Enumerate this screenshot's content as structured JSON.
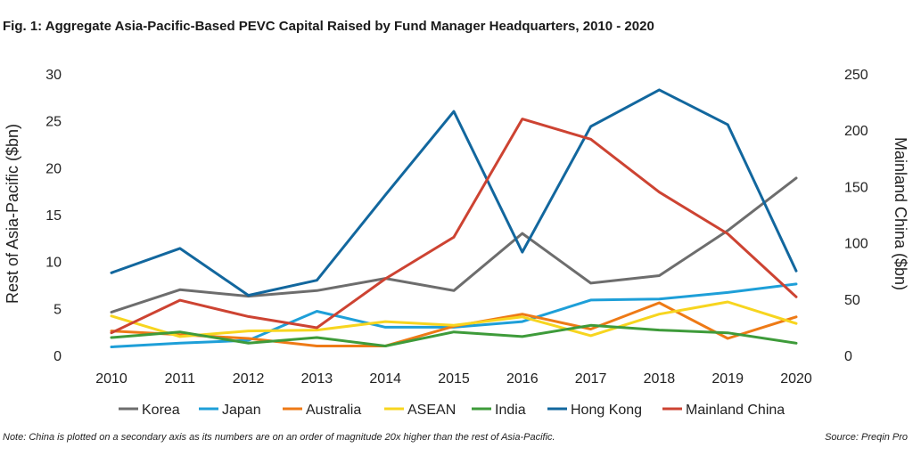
{
  "chart_data": {
    "type": "line",
    "title": "Fig. 1: Aggregate Asia-Pacific-Based PEVC Capital Raised by Fund Manager Headquarters, 2010 - 2020",
    "xlabel": "",
    "ylabel": "Rest of Asia-Pacific ($bn)",
    "y2label": "Mainland China ($bn)",
    "categories": [
      "2010",
      "2011",
      "2012",
      "2013",
      "2014",
      "2015",
      "2016",
      "2017",
      "2018",
      "2019",
      "2020"
    ],
    "ylim": [
      0,
      30
    ],
    "yticks": [
      0,
      5,
      10,
      15,
      20,
      25,
      30
    ],
    "y2lim": [
      0,
      250
    ],
    "y2ticks": [
      0,
      50,
      100,
      150,
      200,
      250
    ],
    "series": [
      {
        "name": "Korea",
        "color": "#6d6d6d",
        "axis": "left",
        "values": [
          4.6,
          7.0,
          6.3,
          6.9,
          8.2,
          6.9,
          13.0,
          7.7,
          8.5,
          13.3,
          18.9
        ]
      },
      {
        "name": "Japan",
        "color": "#1e9fd8",
        "axis": "left",
        "values": [
          0.9,
          1.3,
          1.6,
          4.7,
          3.0,
          3.0,
          3.6,
          5.9,
          6.0,
          6.7,
          7.6
        ]
      },
      {
        "name": "Australia",
        "color": "#ee7a16",
        "axis": "left",
        "values": [
          2.6,
          2.2,
          1.8,
          1.0,
          1.0,
          3.1,
          4.4,
          2.8,
          5.6,
          1.8,
          4.1
        ]
      },
      {
        "name": "ASEAN",
        "color": "#f7d51f",
        "axis": "left",
        "values": [
          4.2,
          2.0,
          2.6,
          2.7,
          3.6,
          3.2,
          4.1,
          2.1,
          4.4,
          5.7,
          3.4
        ]
      },
      {
        "name": "India",
        "color": "#3e9b3a",
        "axis": "left",
        "values": [
          1.9,
          2.5,
          1.3,
          1.9,
          1.0,
          2.5,
          2.0,
          3.2,
          2.7,
          2.4,
          1.3
        ]
      },
      {
        "name": "Hong Kong",
        "color": "#12679e",
        "axis": "left",
        "values": [
          8.8,
          11.4,
          6.4,
          8.0,
          17.1,
          26.0,
          11.0,
          24.4,
          28.3,
          24.6,
          9.0
        ]
      },
      {
        "name": "Mainland China",
        "color": "#cd4332",
        "axis": "right",
        "values": [
          20.0,
          49.0,
          34.5,
          24.5,
          68.0,
          105.0,
          210.0,
          192.0,
          145.0,
          108.0,
          52.0
        ]
      }
    ]
  },
  "footer": {
    "note": "Note: China is plotted on a secondary axis as its numbers are on an order of magnitude 20x higher than the rest of Asia-Pacific.",
    "source": "Source: Preqin Pro"
  }
}
